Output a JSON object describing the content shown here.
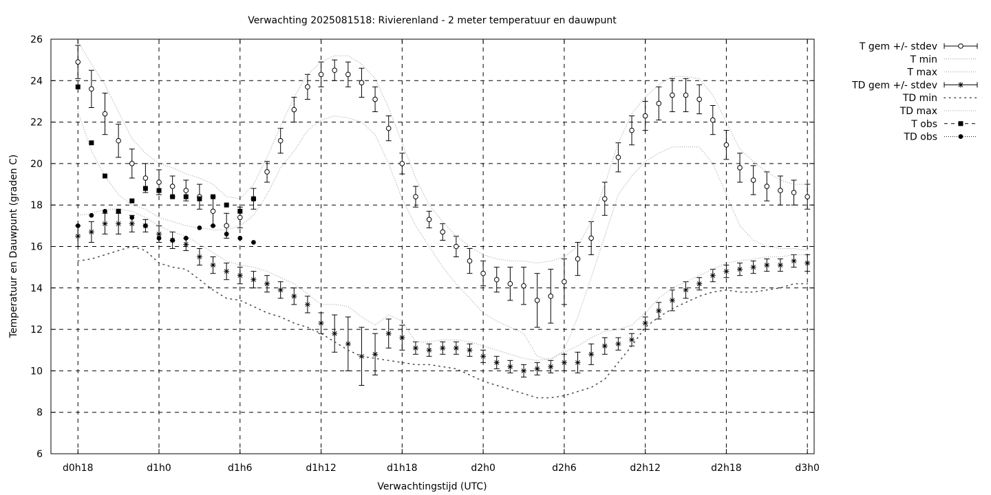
{
  "chart_data": {
    "type": "line",
    "title": "Verwachting 2025081518: Rivierenland - 2 meter temperatuur en dauwpunt",
    "xlabel": "Verwachtingstijd (UTC)",
    "ylabel": "Temperatuur en Dauwpunt (graden C)",
    "x_unit": "hours since d0h18",
    "xlim": [
      -2,
      54.5
    ],
    "ylim": [
      6,
      26
    ],
    "y_ticks": [
      6,
      8,
      10,
      12,
      14,
      16,
      18,
      20,
      22,
      24,
      26
    ],
    "x_ticks": [
      {
        "x": 0,
        "label": "d0h18"
      },
      {
        "x": 6,
        "label": "d1h0"
      },
      {
        "x": 12,
        "label": "d1h6"
      },
      {
        "x": 18,
        "label": "d1h12"
      },
      {
        "x": 24,
        "label": "d1h18"
      },
      {
        "x": 30,
        "label": "d2h0"
      },
      {
        "x": 36,
        "label": "d2h6"
      },
      {
        "x": 42,
        "label": "d2h12"
      },
      {
        "x": 48,
        "label": "d2h18"
      },
      {
        "x": 54,
        "label": "d3h0"
      }
    ],
    "grid": true,
    "legend_position": "top-right-outside",
    "series": [
      {
        "name": "T gem +/- stdev",
        "style": "errorbar-circle",
        "x": [
          0,
          1,
          2,
          3,
          4,
          5,
          6,
          7,
          8,
          9,
          10,
          11,
          12,
          13,
          14,
          15,
          16,
          17,
          18,
          19,
          20,
          21,
          22,
          23,
          24,
          25,
          26,
          27,
          28,
          29,
          30,
          31,
          32,
          33,
          34,
          35,
          36,
          37,
          38,
          39,
          40,
          41,
          42,
          43,
          44,
          45,
          46,
          47,
          48,
          49,
          50,
          51,
          52,
          53,
          54
        ],
        "y": [
          24.9,
          23.6,
          22.4,
          21.1,
          20.0,
          19.3,
          19.1,
          18.9,
          18.7,
          18.4,
          17.7,
          17.0,
          17.4,
          18.3,
          19.6,
          21.1,
          22.6,
          23.7,
          24.3,
          24.5,
          24.3,
          23.9,
          23.1,
          21.7,
          20.0,
          18.4,
          17.3,
          16.7,
          16.0,
          15.3,
          14.7,
          14.4,
          14.2,
          14.1,
          13.4,
          13.6,
          14.3,
          15.4,
          16.4,
          18.3,
          20.3,
          21.6,
          22.3,
          22.9,
          23.3,
          23.3,
          23.1,
          22.1,
          20.9,
          19.8,
          19.2,
          18.9,
          18.7,
          18.6,
          18.4
        ],
        "stdev": [
          0.8,
          0.9,
          1.0,
          0.8,
          0.7,
          0.7,
          0.6,
          0.5,
          0.5,
          0.6,
          0.7,
          0.6,
          0.5,
          0.5,
          0.5,
          0.6,
          0.6,
          0.6,
          0.6,
          0.5,
          0.6,
          0.7,
          0.6,
          0.6,
          0.5,
          0.5,
          0.4,
          0.4,
          0.5,
          0.6,
          0.6,
          0.6,
          0.8,
          0.9,
          1.3,
          1.3,
          1.1,
          0.8,
          0.8,
          0.8,
          0.7,
          0.7,
          0.7,
          0.8,
          0.8,
          0.8,
          0.7,
          0.7,
          0.7,
          0.7,
          0.7,
          0.7,
          0.7,
          0.6,
          0.6
        ]
      },
      {
        "name": "T min",
        "style": "dotted-line",
        "x": [
          0,
          1,
          2,
          3,
          4,
          5,
          6,
          7,
          8,
          9,
          10,
          11,
          12,
          13,
          14,
          15,
          16,
          17,
          18,
          19,
          20,
          21,
          22,
          23,
          24,
          25,
          26,
          27,
          28,
          29,
          30,
          31,
          32,
          33,
          34,
          35,
          36,
          37,
          38,
          39,
          40,
          41,
          42,
          43,
          44,
          45,
          46,
          47,
          48,
          49,
          50,
          51,
          52,
          53,
          54
        ],
        "y": [
          22.5,
          20.6,
          19.4,
          18.5,
          18.0,
          17.8,
          17.4,
          17.2,
          17.0,
          16.9,
          16.8,
          16.8,
          17.0,
          17.5,
          18.5,
          19.8,
          20.6,
          21.6,
          22.1,
          22.3,
          22.2,
          22.0,
          21.4,
          20.0,
          18.3,
          17.0,
          16.0,
          15.0,
          14.2,
          13.5,
          12.8,
          12.4,
          12.1,
          11.8,
          10.7,
          10.5,
          11.0,
          12.6,
          14.5,
          16.5,
          18.5,
          19.4,
          20.1,
          20.5,
          20.8,
          20.8,
          20.8,
          20.0,
          18.5,
          17.0,
          16.3,
          16.0,
          15.9,
          15.9,
          15.8
        ]
      },
      {
        "name": "T max",
        "style": "dotted-line",
        "x": [
          0,
          1,
          2,
          3,
          4,
          5,
          6,
          7,
          8,
          9,
          10,
          11,
          12,
          13,
          14,
          15,
          16,
          17,
          18,
          19,
          20,
          21,
          22,
          23,
          24,
          25,
          26,
          27,
          28,
          29,
          30,
          31,
          32,
          33,
          34,
          35,
          36,
          37,
          38,
          39,
          40,
          41,
          42,
          43,
          44,
          45,
          46,
          47,
          48,
          49,
          50,
          51,
          52,
          53,
          54
        ],
        "y": [
          25.9,
          24.8,
          23.8,
          22.5,
          21.2,
          20.5,
          20.0,
          19.8,
          19.5,
          19.3,
          19.0,
          18.4,
          18.3,
          19.0,
          20.3,
          21.8,
          23.2,
          24.3,
          24.9,
          25.2,
          25.2,
          24.8,
          24.1,
          22.7,
          21.0,
          19.3,
          18.0,
          17.2,
          16.5,
          16.0,
          15.6,
          15.4,
          15.3,
          15.3,
          15.2,
          15.3,
          15.5,
          16.0,
          17.2,
          19.0,
          21.0,
          22.4,
          23.2,
          23.8,
          24.2,
          24.2,
          24.1,
          23.3,
          22.0,
          20.7,
          20.1,
          19.6,
          19.2,
          19.0,
          19.0
        ]
      },
      {
        "name": "TD gem +/- stdev",
        "style": "errorbar-star",
        "x": [
          0,
          1,
          2,
          3,
          4,
          5,
          6,
          7,
          8,
          9,
          10,
          11,
          12,
          13,
          14,
          15,
          16,
          17,
          18,
          19,
          20,
          21,
          22,
          23,
          24,
          25,
          26,
          27,
          28,
          29,
          30,
          31,
          32,
          33,
          34,
          35,
          36,
          37,
          38,
          39,
          40,
          41,
          42,
          43,
          44,
          45,
          46,
          47,
          48,
          49,
          50,
          51,
          52,
          53,
          54
        ],
        "y": [
          16.5,
          16.7,
          17.1,
          17.1,
          17.1,
          17.0,
          16.6,
          16.3,
          16.1,
          15.5,
          15.1,
          14.8,
          14.6,
          14.4,
          14.2,
          13.9,
          13.6,
          13.2,
          12.3,
          11.8,
          11.3,
          10.7,
          10.8,
          11.8,
          11.6,
          11.1,
          11.0,
          11.1,
          11.1,
          11.0,
          10.7,
          10.4,
          10.2,
          10.0,
          10.1,
          10.2,
          10.4,
          10.4,
          10.8,
          11.2,
          11.3,
          11.5,
          12.3,
          12.9,
          13.4,
          13.9,
          14.2,
          14.6,
          14.8,
          14.9,
          15.0,
          15.1,
          15.1,
          15.3,
          15.2
        ],
        "stdev": [
          0.5,
          0.5,
          0.5,
          0.5,
          0.4,
          0.3,
          0.4,
          0.4,
          0.3,
          0.4,
          0.4,
          0.4,
          0.4,
          0.4,
          0.4,
          0.4,
          0.4,
          0.4,
          0.5,
          0.9,
          1.3,
          1.4,
          1.0,
          0.7,
          0.6,
          0.3,
          0.3,
          0.3,
          0.3,
          0.3,
          0.3,
          0.3,
          0.3,
          0.3,
          0.3,
          0.3,
          0.4,
          0.5,
          0.5,
          0.4,
          0.3,
          0.3,
          0.3,
          0.4,
          0.5,
          0.4,
          0.3,
          0.3,
          0.3,
          0.3,
          0.3,
          0.3,
          0.3,
          0.3,
          0.4
        ]
      },
      {
        "name": "TD min",
        "style": "dotted-sparse",
        "x": [
          0,
          1,
          2,
          3,
          4,
          5,
          6,
          7,
          8,
          9,
          10,
          11,
          12,
          13,
          14,
          15,
          16,
          17,
          18,
          19,
          20,
          21,
          22,
          23,
          24,
          25,
          26,
          27,
          28,
          29,
          30,
          31,
          32,
          33,
          34,
          35,
          36,
          37,
          38,
          39,
          40,
          41,
          42,
          43,
          44,
          45,
          46,
          47,
          48,
          49,
          50,
          51,
          52,
          53,
          54
        ],
        "y": [
          15.3,
          15.4,
          15.6,
          15.8,
          16.0,
          15.8,
          15.2,
          15.0,
          14.9,
          14.4,
          13.9,
          13.5,
          13.4,
          13.1,
          12.8,
          12.6,
          12.3,
          12.1,
          11.8,
          11.4,
          11.0,
          10.7,
          10.6,
          10.5,
          10.4,
          10.3,
          10.3,
          10.2,
          10.1,
          9.8,
          9.5,
          9.3,
          9.1,
          8.9,
          8.7,
          8.7,
          8.8,
          9.0,
          9.2,
          9.6,
          10.4,
          11.2,
          12.1,
          12.6,
          13.0,
          13.3,
          13.6,
          13.8,
          13.9,
          13.8,
          13.8,
          13.9,
          14.0,
          14.2,
          14.2
        ]
      },
      {
        "name": "TD max",
        "style": "dotted-line",
        "x": [
          0,
          1,
          2,
          3,
          4,
          5,
          6,
          7,
          8,
          9,
          10,
          11,
          12,
          13,
          14,
          15,
          16,
          17,
          18,
          19,
          20,
          21,
          22,
          23,
          24,
          25,
          26,
          27,
          28,
          29,
          30,
          31,
          32,
          33,
          34,
          35,
          36,
          37,
          38,
          39,
          40,
          41,
          42,
          43,
          44,
          45,
          46,
          47,
          48,
          49,
          50,
          51,
          52,
          53,
          54
        ],
        "y": [
          17.5,
          17.6,
          17.8,
          17.8,
          17.7,
          17.4,
          17.0,
          16.7,
          16.5,
          16.1,
          15.7,
          15.3,
          15.1,
          15.0,
          14.8,
          14.5,
          14.2,
          13.7,
          13.2,
          13.2,
          13.1,
          12.6,
          12.2,
          12.7,
          12.4,
          11.4,
          11.4,
          11.5,
          11.5,
          11.4,
          11.2,
          11.0,
          10.8,
          10.6,
          10.5,
          10.6,
          10.9,
          11.2,
          11.6,
          11.9,
          12.0,
          12.2,
          12.8,
          13.5,
          14.0,
          14.3,
          14.6,
          14.9,
          15.2,
          15.3,
          15.4,
          15.5,
          15.5,
          15.6,
          15.6
        ]
      },
      {
        "name": "T obs",
        "style": "square-points",
        "x": [
          0,
          1,
          2,
          3,
          4,
          5,
          6,
          7,
          8,
          9,
          10,
          11,
          12,
          13
        ],
        "y": [
          23.7,
          21.0,
          19.4,
          17.7,
          18.2,
          18.8,
          18.7,
          18.4,
          18.4,
          18.3,
          18.4,
          18.0,
          17.7,
          18.3
        ]
      },
      {
        "name": "TD obs",
        "style": "circle-points",
        "x": [
          0,
          1,
          2,
          3,
          4,
          5,
          6,
          7,
          8,
          9,
          10,
          11,
          12,
          13
        ],
        "y": [
          17.0,
          17.5,
          17.7,
          17.7,
          17.4,
          17.0,
          16.4,
          16.3,
          16.4,
          16.9,
          17.0,
          16.6,
          16.4,
          16.2
        ]
      }
    ]
  }
}
